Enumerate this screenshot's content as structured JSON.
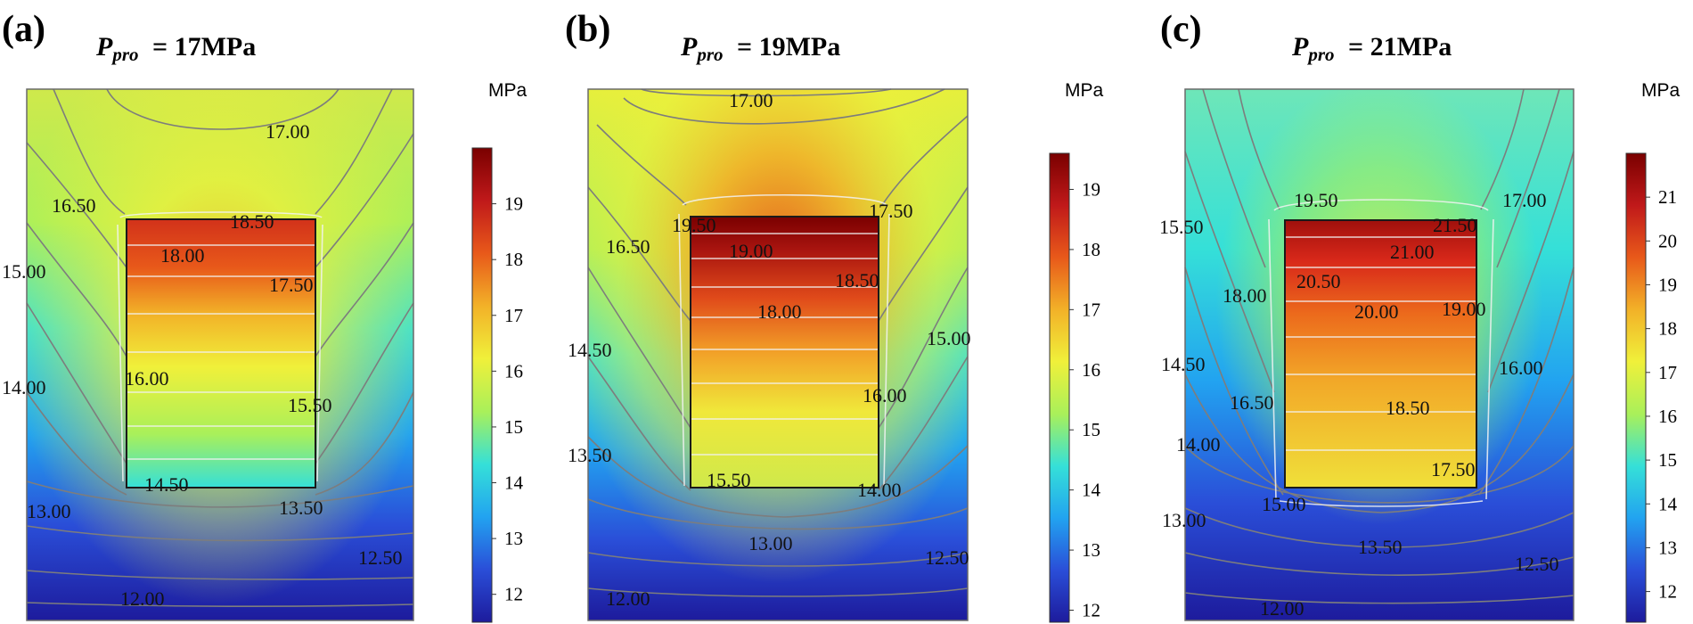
{
  "figure": {
    "colormap": [
      "#1d1b9c",
      "#2a4ed8",
      "#22a3f0",
      "#35e0d8",
      "#a9f05a",
      "#f0f03a",
      "#f2b128",
      "#e8591a",
      "#c0191a",
      "#7a0000"
    ],
    "grid_color": "#7d7d7d",
    "block_color": "#1a1a1a",
    "panels": [
      {
        "letter": "(a)",
        "title": {
          "var": "P",
          "sub": "pro",
          "rest": " = 17MPa"
        },
        "pressure_mpa": 17,
        "colorbar": {
          "unit": "MPa",
          "min": 11.5,
          "max": 20,
          "ticks": [
            "12",
            "13",
            "14",
            "15",
            "16",
            "17",
            "18",
            "19"
          ]
        },
        "contour_labels": [
          "17.00",
          "16.50",
          "18.50",
          "18.00",
          "15.00",
          "17.50",
          "14.00",
          "16.00",
          "15.50",
          "14.50",
          "13.00",
          "13.50",
          "12.50",
          "12.00"
        ]
      },
      {
        "letter": "(b)",
        "title": {
          "var": "P",
          "sub": "pro",
          "rest": " = 19MPa"
        },
        "pressure_mpa": 19,
        "colorbar": {
          "unit": "MPa",
          "min": 11.8,
          "max": 19.6,
          "ticks": [
            "12",
            "13",
            "14",
            "15",
            "16",
            "17",
            "18",
            "19"
          ]
        },
        "contour_labels": [
          "17.00",
          "17.50",
          "19.50",
          "16.50",
          "19.00",
          "18.50",
          "18.00",
          "15.00",
          "14.50",
          "16.00",
          "13.50",
          "15.50",
          "14.00",
          "13.00",
          "12.50",
          "12.00"
        ]
      },
      {
        "letter": "(c)",
        "title": {
          "var": "P",
          "sub": "pro",
          "rest": " = 21MPa"
        },
        "pressure_mpa": 21,
        "colorbar": {
          "unit": "MPa",
          "min": 11.3,
          "max": 22,
          "ticks": [
            "12",
            "13",
            "14",
            "15",
            "16",
            "17",
            "18",
            "19",
            "20",
            "21"
          ]
        },
        "contour_labels": [
          "19.50",
          "17.00",
          "15.50",
          "21.50",
          "21.00",
          "18.00",
          "20.50",
          "19.00",
          "20.00",
          "14.50",
          "16.00",
          "16.50",
          "18.50",
          "14.00",
          "17.50",
          "15.00",
          "13.00",
          "13.50",
          "12.50",
          "12.00"
        ]
      }
    ]
  }
}
